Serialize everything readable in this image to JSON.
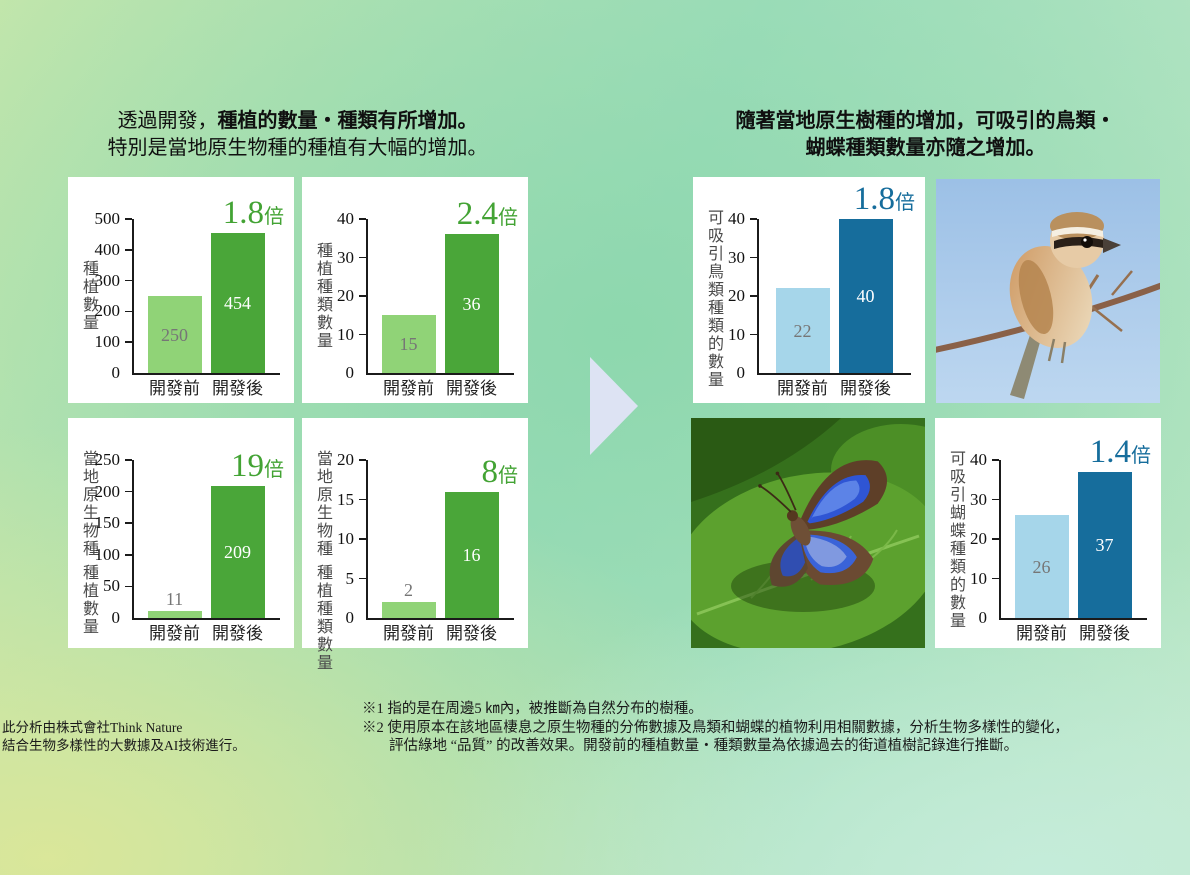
{
  "titles": {
    "left_line1_normal": "透過開發，",
    "left_line1_bold": "種植的數量・種類有所增加。",
    "left_line2": "特別是當地原生物種的種植有大幅的增加。",
    "right_line1": "隨著當地原生樹種的增加，可吸引的鳥類・",
    "right_line2": "蝴蝶種類數量亦隨之增加。"
  },
  "colors": {
    "green_light": "#90d377",
    "green_dark": "#4aa639",
    "blue_light": "#a6d6ea",
    "blue_dark": "#166d9c",
    "multiplier_green": "#43a334",
    "multiplier_blue": "#166d9c",
    "value_text_on_light": "#767676",
    "value_text_on_dark": "#ffffff",
    "arrow": "#dde3f3"
  },
  "chart_data": [
    {
      "type": "bar",
      "id": "planting-quantity",
      "ylabel": "種植數量",
      "ylim": [
        0,
        500
      ],
      "yticks": [
        0,
        100,
        200,
        300,
        400,
        500
      ],
      "categories": [
        "開發前",
        "開發後"
      ],
      "values": [
        250,
        454
      ],
      "multiplier": "1.8",
      "multiplier_unit": "倍",
      "palette": "green",
      "grid": false,
      "legend": "none"
    },
    {
      "type": "bar",
      "id": "planting-species",
      "ylabel": "種植種類數量",
      "ylim": [
        0,
        40
      ],
      "yticks": [
        0,
        10,
        20,
        30,
        40
      ],
      "categories": [
        "開發前",
        "開發後"
      ],
      "values": [
        15,
        36
      ],
      "multiplier": "2.4",
      "multiplier_unit": "倍",
      "palette": "green",
      "grid": false,
      "legend": "none"
    },
    {
      "type": "bar",
      "id": "native-planting-quantity",
      "ylabel": "當地原生物種 種植數量",
      "ylim": [
        0,
        250
      ],
      "yticks": [
        0,
        50,
        100,
        150,
        200,
        250
      ],
      "categories": [
        "開發前",
        "開發後"
      ],
      "values": [
        11,
        209
      ],
      "multiplier": "19",
      "multiplier_unit": "倍",
      "palette": "green",
      "grid": false,
      "legend": "none"
    },
    {
      "type": "bar",
      "id": "native-planting-species",
      "ylabel": "當地原生物種 種植種類數量",
      "ylim": [
        0,
        20
      ],
      "yticks": [
        0,
        5,
        10,
        15,
        20
      ],
      "categories": [
        "開發前",
        "開發後"
      ],
      "values": [
        2,
        16
      ],
      "multiplier": "8",
      "multiplier_unit": "倍",
      "palette": "green",
      "grid": false,
      "legend": "none"
    },
    {
      "type": "bar",
      "id": "attracted-bird-species",
      "ylabel": "可吸引鳥類種類的數量",
      "ylim": [
        0,
        40
      ],
      "yticks": [
        0,
        10,
        20,
        30,
        40
      ],
      "categories": [
        "開發前",
        "開發後"
      ],
      "values": [
        22,
        40
      ],
      "multiplier": "1.8",
      "multiplier_unit": "倍",
      "palette": "blue",
      "grid": false,
      "legend": "none"
    },
    {
      "type": "bar",
      "id": "attracted-butterfly-species",
      "ylabel": "可吸引蝴蝶種類的數量",
      "ylim": [
        0,
        40
      ],
      "yticks": [
        0,
        10,
        20,
        30,
        40
      ],
      "categories": [
        "開發前",
        "開發後"
      ],
      "values": [
        26,
        37
      ],
      "multiplier": "1.4",
      "multiplier_unit": "倍",
      "palette": "blue",
      "grid": false,
      "legend": "none"
    }
  ],
  "footnotes": {
    "left_line1": "此分析由株式會社Think Nature",
    "left_line2": "結合生物多樣性的大數據及AI技術進行。",
    "note1": "※1 指的是在周邊5 ㎞內，被推斷為自然分布的樹種。",
    "note2_line1": "※2 使用原本在該地區棲息之原生物種的分佈數據及鳥類和蝴蝶的植物利用相關數據，分析生物多樣性的變化，",
    "note2_line2": "評估綠地 “品質” 的改善效果。開發前的種植數量・種類數量為依據過去的街道植樹記錄進行推斷。"
  }
}
